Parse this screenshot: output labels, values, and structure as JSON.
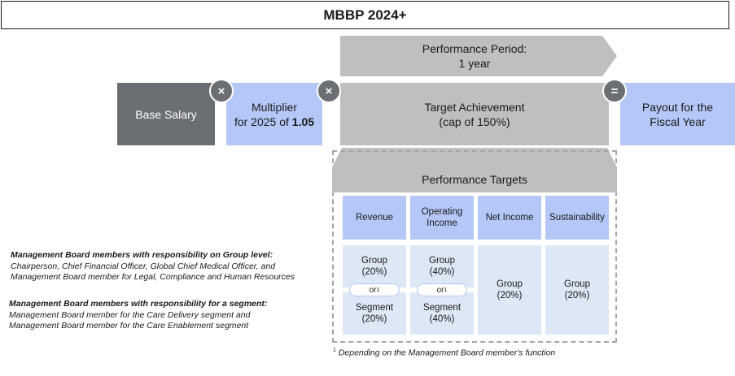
{
  "title": "MBBP 2024+",
  "period": {
    "line1": "Performance Period:",
    "line2": "1 year"
  },
  "base_salary": "Base Salary",
  "multiplier": {
    "line1": "Multiplier",
    "line2_prefix": "for 2025 of ",
    "value": "1.05"
  },
  "target_achievement": {
    "line1": "Target Achievement",
    "line2": "(cap of 150%)"
  },
  "payout": {
    "line1": "Payout for the",
    "line2": "Fiscal Year"
  },
  "operators": {
    "multiply1": "×",
    "multiply2": "×",
    "equals": "="
  },
  "targets": {
    "header": "Performance Targets",
    "columns": [
      {
        "label_line1": "Revenue",
        "label_line2": ""
      },
      {
        "label_line1": "Operating",
        "label_line2": "Income"
      },
      {
        "label_line1": "Net Income",
        "label_line2": ""
      },
      {
        "label_line1": "Sustainability",
        "label_line2": ""
      }
    ],
    "revenue": {
      "group": "Group",
      "group_pct": "(20%)",
      "or": "or",
      "segment": "Segment",
      "segment_pct": "(20%)"
    },
    "operating_income": {
      "group": "Group",
      "group_pct": "(40%)",
      "or": "or",
      "segment": "Segment",
      "segment_pct": "(40%)"
    },
    "net_income": {
      "group": "Group",
      "group_pct": "(20%)"
    },
    "sustainability": {
      "group": "Group",
      "group_pct": "(20%)"
    },
    "footnote_mark": "1"
  },
  "notes": {
    "group_level": {
      "heading": "Management  Board members with responsibility  on Group level:",
      "line1": "Chairperson, Chief Financial Officer, Global Chief Medical Officer, and",
      "line2": "Management  Board member for Legal,  Compliance and Human Resources"
    },
    "segment": {
      "heading": "Management  Board members with responsibility  for a segment:",
      "line1": "Management  Board member for the Care Delivery segment and",
      "line2": "Management  Board member for the Care Enablement segment"
    }
  },
  "footnote": {
    "mark": "1",
    "text": " Depending on the Management Board member's function"
  },
  "colors": {
    "dark": "#6b6f73",
    "gray": "#bfbfbf",
    "blue": "#b4c7f7",
    "light_blue": "#dde8f6"
  }
}
